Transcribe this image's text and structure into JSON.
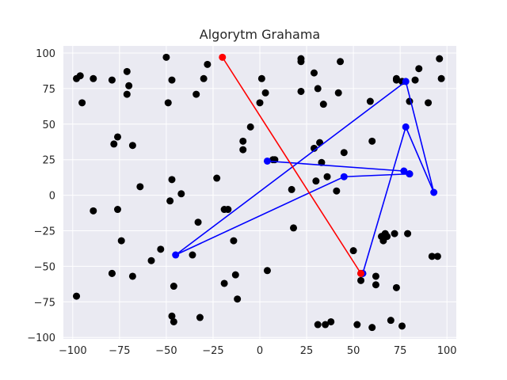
{
  "chart_data": {
    "type": "scatter",
    "title": "Algorytm Grahama",
    "xlabel": "",
    "ylabel": "",
    "xlim": [
      -105,
      105
    ],
    "ylim": [
      -101,
      105
    ],
    "grid": true,
    "background_color": "#eaeaf2",
    "x_ticks": [
      -100,
      -75,
      -50,
      -25,
      0,
      25,
      50,
      75,
      100
    ],
    "y_ticks": [
      -100,
      -75,
      -50,
      -25,
      0,
      25,
      50,
      75,
      100
    ],
    "x_tick_labels": [
      "−100",
      "−75",
      "−50",
      "−25",
      "0",
      "25",
      "50",
      "75",
      "100"
    ],
    "y_tick_labels": [
      "−100",
      "−75",
      "−50",
      "−25",
      "0",
      "25",
      "50",
      "75",
      "100"
    ],
    "points": {
      "color": "#000000",
      "x": [
        -98,
        -96,
        -89,
        -95,
        -98,
        -79,
        -76,
        -78,
        -71,
        -70,
        -71,
        -50,
        -47,
        -49,
        -34,
        -30,
        -28,
        -79,
        -74,
        -68,
        -64,
        -47,
        -48,
        -42,
        -89,
        -76,
        -79,
        -68,
        -58,
        -53,
        -46,
        -47,
        -46,
        -36,
        -32,
        -33,
        -23,
        -19,
        -17,
        -14,
        -13,
        -19,
        -12,
        -9,
        -9,
        -5,
        0,
        1,
        3,
        8,
        17,
        18,
        22,
        22,
        29,
        31,
        34,
        29,
        32,
        33,
        42,
        36,
        41,
        45,
        43,
        35,
        55,
        59,
        60,
        76,
        73,
        73,
        80,
        80,
        85,
        83,
        90,
        96,
        97,
        92,
        66,
        65,
        67,
        70,
        73,
        76,
        50,
        54,
        62,
        52,
        60,
        62,
        38,
        31,
        68,
        72,
        79,
        54,
        95,
        4,
        30,
        22,
        7
      ],
      "y": [
        82,
        84,
        82,
        65,
        -71,
        81,
        41,
        36,
        71,
        77,
        87,
        97,
        81,
        65,
        71,
        82,
        92,
        -55,
        -32,
        35,
        6,
        11,
        -4,
        1,
        -11,
        -10,
        -55,
        -57,
        -46,
        -38,
        -64,
        -85,
        -89,
        -42,
        -86,
        -19,
        12,
        -62,
        -10,
        -32,
        -56,
        -10,
        -73,
        38,
        32,
        48,
        65,
        82,
        72,
        25,
        4,
        -23,
        94,
        96,
        86,
        75,
        64,
        33,
        37,
        23,
        72,
        13,
        3,
        30,
        94,
        -91,
        -55,
        66,
        38,
        80,
        82,
        81,
        66,
        15,
        89,
        81,
        65,
        96,
        82,
        -43,
        -32,
        -29,
        -27,
        -88,
        -65,
        -92,
        -39,
        -60,
        -63,
        -91,
        -93,
        -57,
        -89,
        -91,
        -29,
        -27,
        -27,
        -55,
        -43,
        -53,
        10,
        73,
        25
      ]
    },
    "red_line": {
      "color": "#ff0000",
      "x": [
        -20,
        54
      ],
      "y": [
        97,
        -55
      ]
    },
    "blue_path": {
      "color": "#0000ff",
      "x": [
        4,
        77,
        80,
        45,
        -45,
        78,
        93,
        78,
        55
      ],
      "y": [
        24,
        17,
        15,
        13,
        -42,
        80,
        2,
        48,
        -55
      ]
    }
  }
}
